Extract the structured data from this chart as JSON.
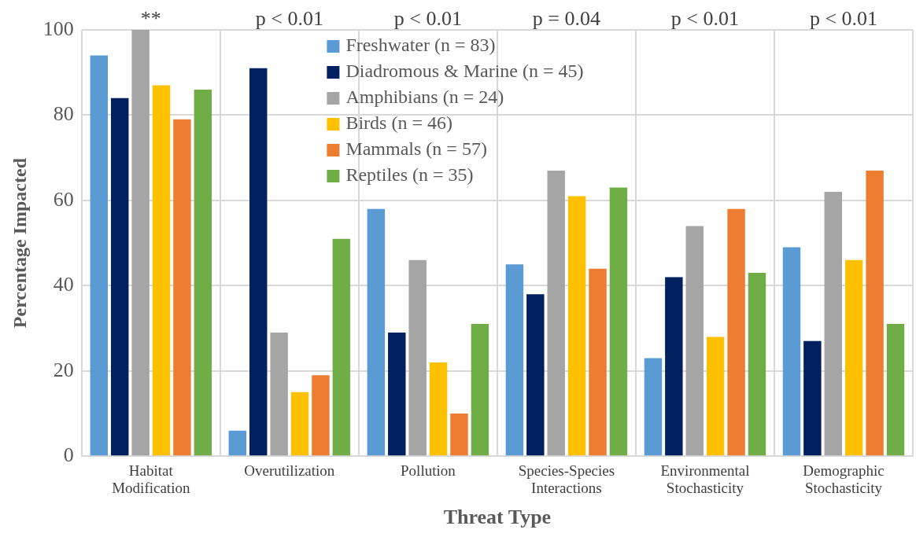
{
  "chart_data": {
    "type": "bar",
    "xlabel": "Threat Type",
    "ylabel": "Percentage Impacted",
    "categories": [
      "Habitat Modification",
      "Overutilization",
      "Pollution",
      "Species-Species Interactions",
      "Environmental Stochasticity",
      "Demographic Stochasticity"
    ],
    "series": [
      {
        "name": "Freshwater (n = 83)",
        "color": "#5b9bd5",
        "values": [
          94,
          6,
          58,
          45,
          23,
          49
        ]
      },
      {
        "name": "Diadromous & Marine (n = 45)",
        "color": "#002060",
        "values": [
          84,
          91,
          29,
          38,
          42,
          27
        ]
      },
      {
        "name": "Amphibians (n = 24)",
        "color": "#a5a5a5",
        "values": [
          100,
          29,
          46,
          67,
          54,
          62
        ]
      },
      {
        "name": "Birds (n = 46)",
        "color": "#ffc000",
        "values": [
          87,
          15,
          22,
          61,
          28,
          46
        ]
      },
      {
        "name": "Mammals (n = 57)",
        "color": "#ed7d31",
        "values": [
          79,
          19,
          10,
          44,
          58,
          67
        ]
      },
      {
        "name": "Reptiles (n = 35)",
        "color": "#70ad47",
        "values": [
          86,
          51,
          31,
          63,
          43,
          31
        ]
      }
    ],
    "ylim": [
      0,
      100
    ],
    "yticks": [
      0,
      20,
      40,
      60,
      80,
      100
    ],
    "grid": true,
    "legend": "top",
    "annotations": [
      "**",
      "p < 0.01",
      "p < 0.01",
      "p = 0.04",
      "p < 0.01",
      "p < 0.01"
    ]
  }
}
